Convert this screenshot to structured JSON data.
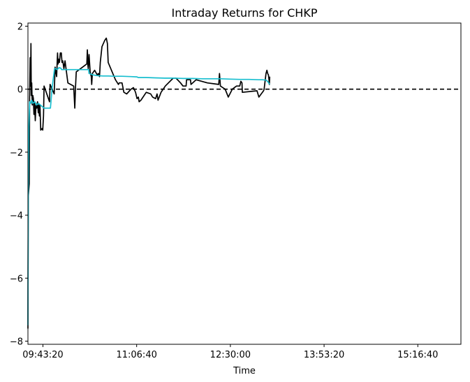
{
  "chart_data": {
    "type": "line",
    "title": "Intraday Returns for CHKP",
    "xlabel": "Time",
    "ylabel": "",
    "x_tick_labels": [
      "09:43:20",
      "11:06:40",
      "12:30:00",
      "13:53:20",
      "15:16:40"
    ],
    "x_tick_seconds": [
      35000,
      40000,
      45000,
      50000,
      55000
    ],
    "xlim": [
      34200,
      57300
    ],
    "y_ticks": [
      -8,
      -6,
      -4,
      -2,
      0,
      2
    ],
    "ylim": [
      -8.1,
      2.1
    ],
    "reference_line": {
      "y": 0,
      "style": "dashed",
      "color": "#000000"
    },
    "series": [
      {
        "color": "#000000",
        "points": [
          [
            34200,
            -7.6
          ],
          [
            34220,
            -3.4
          ],
          [
            34270,
            -3.0
          ],
          [
            34290,
            -0.3
          ],
          [
            34320,
            1.0
          ],
          [
            34340,
            0.1
          ],
          [
            34360,
            1.45
          ],
          [
            34380,
            -0.2
          ],
          [
            34400,
            0.2
          ],
          [
            34430,
            -0.5
          ],
          [
            34460,
            -0.2
          ],
          [
            34490,
            -0.3
          ],
          [
            34520,
            -0.8
          ],
          [
            34550,
            -0.4
          ],
          [
            34590,
            -1.0
          ],
          [
            34630,
            -0.5
          ],
          [
            34670,
            -0.6
          ],
          [
            34710,
            -0.4
          ],
          [
            34750,
            -0.75
          ],
          [
            34780,
            -0.5
          ],
          [
            34810,
            -0.85
          ],
          [
            34840,
            -0.5
          ],
          [
            34880,
            -1.3
          ],
          [
            34950,
            -1.25
          ],
          [
            34990,
            -1.3
          ],
          [
            35030,
            -0.85
          ],
          [
            35060,
            0.1
          ],
          [
            35350,
            -0.4
          ],
          [
            35380,
            0.15
          ],
          [
            35600,
            -0.15
          ],
          [
            35650,
            0.7
          ],
          [
            35730,
            0.4
          ],
          [
            35780,
            1.15
          ],
          [
            35810,
            0.8
          ],
          [
            35850,
            0.95
          ],
          [
            35880,
            0.85
          ],
          [
            35930,
            1.15
          ],
          [
            35980,
            1.15
          ],
          [
            36020,
            0.85
          ],
          [
            36060,
            0.9
          ],
          [
            36120,
            0.65
          ],
          [
            36180,
            0.9
          ],
          [
            36330,
            0.2
          ],
          [
            36640,
            0.1
          ],
          [
            36700,
            -0.6
          ],
          [
            36740,
            0.1
          ],
          [
            36780,
            0.55
          ],
          [
            37340,
            0.8
          ],
          [
            37370,
            1.25
          ],
          [
            37400,
            0.75
          ],
          [
            37420,
            0.65
          ],
          [
            37460,
            1.1
          ],
          [
            37520,
            0.55
          ],
          [
            37580,
            0.4
          ],
          [
            37600,
            0.15
          ],
          [
            37640,
            0.5
          ],
          [
            37760,
            0.6
          ],
          [
            37900,
            0.45
          ],
          [
            37960,
            0.5
          ],
          [
            38020,
            0.4
          ],
          [
            38060,
            0.85
          ],
          [
            38150,
            1.35
          ],
          [
            38300,
            1.55
          ],
          [
            38380,
            1.62
          ],
          [
            38440,
            1.45
          ],
          [
            38480,
            0.85
          ],
          [
            38870,
            0.3
          ],
          [
            39030,
            0.15
          ],
          [
            39070,
            0.2
          ],
          [
            39220,
            0.2
          ],
          [
            39320,
            -0.1
          ],
          [
            39470,
            -0.15
          ],
          [
            39700,
            0.0
          ],
          [
            39830,
            0.05
          ],
          [
            39940,
            -0.1
          ],
          [
            40020,
            -0.3
          ],
          [
            40090,
            -0.25
          ],
          [
            40130,
            -0.4
          ],
          [
            40230,
            -0.35
          ],
          [
            40510,
            -0.1
          ],
          [
            40750,
            -0.15
          ],
          [
            40850,
            -0.25
          ],
          [
            41010,
            -0.3
          ],
          [
            41090,
            -0.15
          ],
          [
            41140,
            -0.35
          ],
          [
            41300,
            -0.1
          ],
          [
            41530,
            0.1
          ],
          [
            41950,
            0.35
          ],
          [
            42100,
            0.35
          ],
          [
            42340,
            0.2
          ],
          [
            42470,
            0.1
          ],
          [
            42640,
            0.1
          ],
          [
            42660,
            0.3
          ],
          [
            42700,
            0.3
          ],
          [
            42870,
            0.3
          ],
          [
            42900,
            0.15
          ],
          [
            43170,
            0.3
          ],
          [
            43770,
            0.2
          ],
          [
            44380,
            0.15
          ],
          [
            44420,
            0.5
          ],
          [
            44470,
            0.1
          ],
          [
            44720,
            0.0
          ],
          [
            44890,
            -0.25
          ],
          [
            45100,
            0.0
          ],
          [
            45330,
            0.1
          ],
          [
            45500,
            0.1
          ],
          [
            45560,
            0.25
          ],
          [
            45620,
            0.2
          ],
          [
            45640,
            -0.1
          ],
          [
            46420,
            -0.05
          ],
          [
            46520,
            -0.25
          ],
          [
            46770,
            -0.05
          ],
          [
            46800,
            0.0
          ],
          [
            46870,
            0.35
          ],
          [
            46900,
            0.5
          ],
          [
            46950,
            0.6
          ],
          [
            46990,
            0.5
          ],
          [
            47030,
            0.45
          ],
          [
            47060,
            0.3
          ],
          [
            47080,
            0.15
          ],
          [
            47100,
            0.4
          ]
        ]
      },
      {
        "color": "#17becf",
        "points": [
          [
            34200,
            -7.5
          ],
          [
            34220,
            -3.3
          ],
          [
            34250,
            -1.2
          ],
          [
            34290,
            -0.4
          ],
          [
            34340,
            -0.45
          ],
          [
            34400,
            -0.35
          ],
          [
            34460,
            -0.45
          ],
          [
            34560,
            -0.4
          ],
          [
            34660,
            -0.5
          ],
          [
            34760,
            -0.45
          ],
          [
            34860,
            -0.5
          ],
          [
            34960,
            -0.55
          ],
          [
            35060,
            -0.6
          ],
          [
            35200,
            -0.6
          ],
          [
            35400,
            -0.6
          ],
          [
            35500,
            0.1
          ],
          [
            35620,
            0.65
          ],
          [
            35700,
            0.65
          ],
          [
            35760,
            0.62
          ],
          [
            35850,
            0.68
          ],
          [
            35950,
            0.67
          ],
          [
            36000,
            0.62
          ],
          [
            36200,
            0.62
          ],
          [
            36400,
            0.62
          ],
          [
            36700,
            0.62
          ],
          [
            37000,
            0.62
          ],
          [
            37300,
            0.62
          ],
          [
            37440,
            0.62
          ],
          [
            37460,
            0.5
          ],
          [
            37700,
            0.45
          ],
          [
            37900,
            0.43
          ],
          [
            38200,
            0.42
          ],
          [
            38500,
            0.42
          ],
          [
            38800,
            0.41
          ],
          [
            39200,
            0.41
          ],
          [
            39700,
            0.4
          ],
          [
            40020,
            0.39
          ],
          [
            40080,
            0.37
          ],
          [
            40500,
            0.37
          ],
          [
            41000,
            0.36
          ],
          [
            41500,
            0.35
          ],
          [
            42000,
            0.35
          ],
          [
            42500,
            0.34
          ],
          [
            43000,
            0.34
          ],
          [
            43500,
            0.33
          ],
          [
            44000,
            0.33
          ],
          [
            44500,
            0.33
          ],
          [
            45000,
            0.32
          ],
          [
            45500,
            0.31
          ],
          [
            46000,
            0.31
          ],
          [
            46500,
            0.3
          ],
          [
            46700,
            0.3
          ],
          [
            46900,
            0.29
          ],
          [
            47000,
            0.24
          ],
          [
            47100,
            0.15
          ]
        ]
      }
    ]
  }
}
